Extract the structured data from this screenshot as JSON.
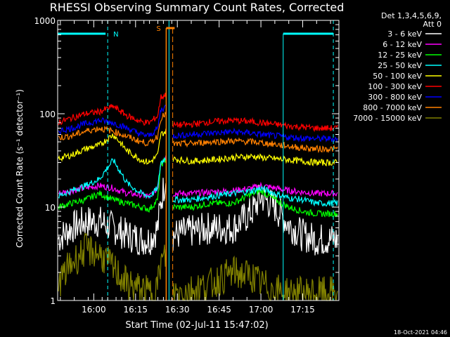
{
  "chart_data": {
    "type": "line",
    "title": "RHESSI Observing Summary Count Rates, Corrected",
    "xlabel": "Start Time (02-Jul-11 15:47:02)",
    "ylabel": "Corrected Count Rate (s⁻¹ detector⁻¹)",
    "y_scale": "log",
    "ylim": [
      1,
      1000
    ],
    "xlim": [
      "15:47:02",
      "17:28:00"
    ],
    "y_ticks": [
      "1",
      "10",
      "100",
      "1000"
    ],
    "x_ticks": [
      "16:00",
      "16:15",
      "16:30",
      "16:45",
      "17:00",
      "17:15"
    ],
    "grid": false,
    "legend": {
      "placement": "top-right",
      "header": [
        "Det 1,3,4,5,6,9,",
        "Att 0"
      ],
      "entries": [
        {
          "name": "3 - 6 keV",
          "color": "#ffffff"
        },
        {
          "name": "6 - 12 keV",
          "color": "#ff00ff"
        },
        {
          "name": "12 - 25 keV",
          "color": "#00ff00"
        },
        {
          "name": "25 - 50 keV",
          "color": "#00ffff"
        },
        {
          "name": "50 - 100 keV",
          "color": "#ffff00"
        },
        {
          "name": "100 - 300 keV",
          "color": "#ff0000"
        },
        {
          "name": "300 - 800 keV",
          "color": "#0000ff"
        },
        {
          "name": "800 - 7000 keV",
          "color": "#ff8000"
        },
        {
          "name": "7000 - 15000 keV",
          "color": "#808000"
        }
      ]
    },
    "annotations": {
      "night_label": "N",
      "saa_label": "S",
      "night_color": "#00ffff",
      "saa_color": "#ff8000",
      "gap": [
        "16:26:00",
        "16:28:20"
      ]
    },
    "series": [
      {
        "name": "3 - 6 keV",
        "x": [
          "15:47",
          "15:52",
          "15:57",
          "16:02",
          "16:07",
          "16:12",
          "16:17",
          "16:20",
          "16:23",
          "16:24",
          "16:26",
          "16:28",
          "16:35",
          "16:42",
          "16:50",
          "16:57",
          "17:00",
          "17:05",
          "17:10",
          "17:15",
          "17:20",
          "17:23",
          "17:28"
        ],
        "values": [
          4.5,
          6,
          7,
          7,
          6,
          5,
          4.5,
          4.5,
          6,
          11,
          22,
          5,
          5.5,
          6,
          6,
          9,
          13,
          10,
          6.5,
          5,
          4.5,
          4.5,
          4.5
        ]
      },
      {
        "name": "6 - 12 keV",
        "x": [
          "15:47",
          "15:52",
          "15:57",
          "16:02",
          "16:07",
          "16:12",
          "16:17",
          "16:20",
          "16:23",
          "16:24",
          "16:26",
          "16:28",
          "16:35",
          "16:42",
          "16:50",
          "16:57",
          "17:00",
          "17:05",
          "17:10",
          "17:15",
          "17:20",
          "17:23",
          "17:28"
        ],
        "values": [
          14,
          15,
          16,
          17,
          16,
          14,
          13.5,
          13,
          16,
          30,
          35,
          14,
          14,
          14.5,
          15,
          16,
          17,
          16,
          15,
          14.5,
          14,
          14,
          14
        ]
      },
      {
        "name": "12 - 25 keV",
        "x": [
          "15:47",
          "15:52",
          "15:57",
          "16:02",
          "16:07",
          "16:12",
          "16:17",
          "16:20",
          "16:23",
          "16:24",
          "16:26",
          "16:28",
          "16:35",
          "16:42",
          "16:50",
          "16:57",
          "17:00",
          "17:05",
          "17:10",
          "17:15",
          "17:20",
          "17:23",
          "17:28"
        ],
        "values": [
          10,
          11,
          12,
          14,
          12,
          11,
          10,
          9.5,
          12,
          28,
          33,
          10,
          10,
          11,
          11,
          14,
          15,
          12,
          10,
          9,
          8.5,
          8.5,
          8.5
        ]
      },
      {
        "name": "25 - 50 keV",
        "x": [
          "15:47",
          "15:52",
          "15:57",
          "16:02",
          "16:07",
          "16:12",
          "16:17",
          "16:20",
          "16:23",
          "16:24",
          "16:26",
          "16:28",
          "16:35",
          "16:42",
          "16:50",
          "16:57",
          "17:00",
          "17:05",
          "17:10",
          "17:15",
          "17:20",
          "17:23",
          "17:28"
        ],
        "values": [
          13,
          15,
          17,
          20,
          32,
          18,
          14,
          13,
          16,
          30,
          34,
          12,
          12,
          13,
          14,
          15,
          16,
          14,
          12.5,
          12,
          11,
          11,
          11
        ]
      },
      {
        "name": "50 - 100 keV",
        "x": [
          "15:47",
          "15:52",
          "15:57",
          "16:02",
          "16:07",
          "16:12",
          "16:17",
          "16:20",
          "16:23",
          "16:24",
          "16:26",
          "16:28",
          "16:35",
          "16:42",
          "16:50",
          "16:57",
          "17:00",
          "17:05",
          "17:10",
          "17:15",
          "17:20",
          "17:23",
          "17:28"
        ],
        "values": [
          33,
          36,
          42,
          46,
          60,
          40,
          32,
          30,
          36,
          60,
          65,
          33,
          31,
          32,
          34,
          35,
          34,
          33,
          32,
          31,
          30,
          30,
          30
        ]
      },
      {
        "name": "100 - 300 keV",
        "x": [
          "15:47",
          "15:52",
          "15:57",
          "16:02",
          "16:07",
          "16:12",
          "16:17",
          "16:20",
          "16:23",
          "16:24",
          "16:26",
          "16:28",
          "16:35",
          "16:42",
          "16:50",
          "16:57",
          "17:00",
          "17:05",
          "17:10",
          "17:15",
          "17:20",
          "17:23",
          "17:28"
        ],
        "values": [
          80,
          90,
          100,
          105,
          120,
          95,
          82,
          80,
          95,
          150,
          160,
          75,
          77,
          82,
          85,
          82,
          80,
          77,
          74,
          72,
          70,
          70,
          70
        ]
      },
      {
        "name": "300 - 800 keV",
        "x": [
          "15:47",
          "15:52",
          "15:57",
          "16:02",
          "16:07",
          "16:12",
          "16:17",
          "16:20",
          "16:23",
          "16:24",
          "16:26",
          "16:28",
          "16:35",
          "16:42",
          "16:50",
          "16:57",
          "17:00",
          "17:05",
          "17:10",
          "17:15",
          "17:20",
          "17:23",
          "17:28"
        ],
        "values": [
          65,
          70,
          78,
          85,
          80,
          70,
          60,
          58,
          70,
          110,
          120,
          58,
          60,
          62,
          64,
          62,
          60,
          58,
          56,
          55,
          54,
          54,
          54
        ]
      },
      {
        "name": "800 - 7000 keV",
        "x": [
          "15:47",
          "15:52",
          "15:57",
          "16:02",
          "16:07",
          "16:12",
          "16:17",
          "16:20",
          "16:23",
          "16:24",
          "16:26",
          "16:28",
          "16:35",
          "16:42",
          "16:50",
          "16:57",
          "17:00",
          "17:05",
          "17:10",
          "17:15",
          "17:20",
          "17:23",
          "17:28"
        ],
        "values": [
          55,
          58,
          65,
          70,
          65,
          57,
          50,
          48,
          58,
          90,
          100,
          47,
          48,
          50,
          51,
          50,
          49,
          47,
          45,
          43,
          42,
          42,
          42
        ]
      },
      {
        "name": "7000 - 15000 keV",
        "x": [
          "15:47",
          "15:52",
          "15:57",
          "16:02",
          "16:07",
          "16:12",
          "16:17",
          "16:20",
          "16:23",
          "16:24",
          "16:26",
          "16:28",
          "16:35",
          "16:42",
          "16:50",
          "16:57",
          "17:00",
          "17:05",
          "17:10",
          "17:15",
          "17:20",
          "17:23",
          "17:28"
        ],
        "values": [
          1.5,
          2.5,
          3.5,
          3.2,
          2.2,
          1.5,
          1.3,
          1.2,
          1.5,
          2.5,
          3,
          1.2,
          1.3,
          1.5,
          2,
          1.8,
          1.5,
          1.3,
          1.2,
          1.2,
          1.2,
          1.2,
          1.2
        ]
      }
    ]
  },
  "footer": {
    "timestamp": "18-Oct-2021 04:46"
  }
}
